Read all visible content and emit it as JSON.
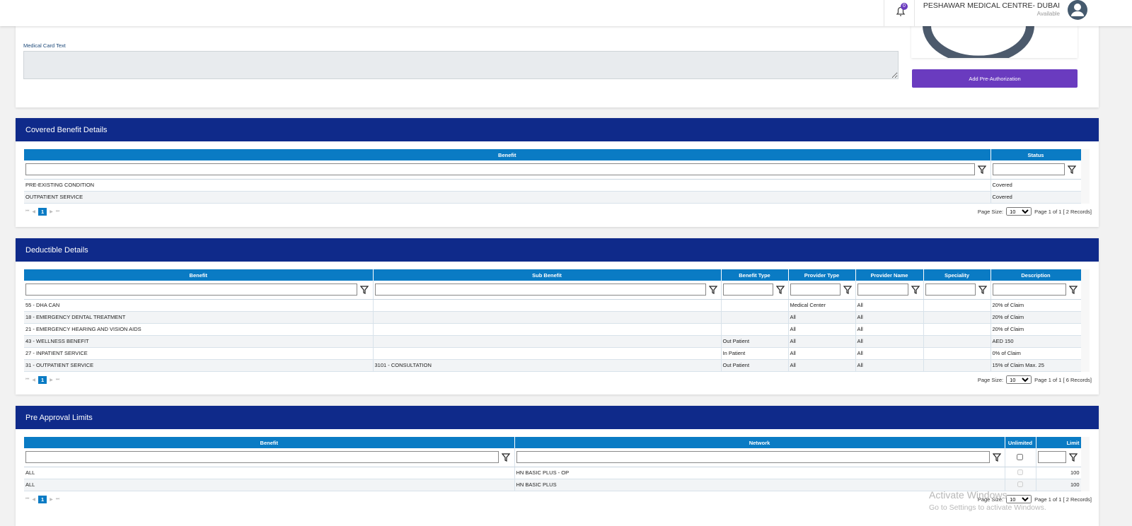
{
  "header": {
    "notifications": 0,
    "provider": "PESHAWAR MEDICAL CENTRE- DUBAI",
    "status": "Available"
  },
  "card": {
    "label": "Medical Card Text",
    "button": "Add Pre-Authorization"
  },
  "sections": [
    {
      "title": "Covered Benefit Details",
      "columns": [
        "Benefit",
        "Status"
      ],
      "rows": [
        [
          "PRE-EXISTING CONDITION",
          "Covered"
        ],
        [
          "OUTPATIENT SERVICE",
          "Covered"
        ]
      ],
      "pager": {
        "page": 1,
        "size_label": "Page Size:",
        "size": 10,
        "info": "Page 1 of 1 [ 2 Records]"
      }
    },
    {
      "title": "Deductible Details",
      "columns": [
        "Benefit",
        "Sub Benefit",
        "Benefit Type",
        "Provider Type",
        "Provider Name",
        "Speciality",
        "Description"
      ],
      "rows": [
        [
          "55 - DHA CAN",
          null,
          null,
          "Medical Center",
          "All",
          null,
          "20% of Claim"
        ],
        [
          "18 - EMERGENCY DENTAL TREATMENT",
          null,
          null,
          "All",
          "All",
          null,
          "20% of Claim"
        ],
        [
          "21 - EMERGENCY HEARING AND VISION AIDS",
          null,
          null,
          "All",
          "All",
          null,
          "20% of Claim"
        ],
        [
          "43 - WELLNESS BENEFIT",
          null,
          "Out Patient",
          "All",
          "All",
          null,
          "AED 150"
        ],
        [
          "27 - INPATIENT SERVICE",
          null,
          "In Patient",
          "All",
          "All",
          null,
          "0% of Claim"
        ],
        [
          "31 - OUTPATIENT SERVICE",
          "3101 - CONSULTATION",
          "Out Patient",
          "All",
          "All",
          null,
          "15% of Claim Max. 25"
        ]
      ],
      "pager": {
        "page": 1,
        "size_label": "Page Size:",
        "size": 10,
        "info": "Page 1 of 1 [ 6 Records]"
      }
    },
    {
      "title": "Pre Approval Limits",
      "columns": [
        "Benefit",
        "Network",
        "Unlimited",
        "Limit"
      ],
      "rows": [
        [
          "ALL",
          "HN BASIC PLUS - OP",
          false,
          100
        ],
        [
          "ALL",
          "HN BASIC PLUS",
          false,
          100
        ]
      ],
      "pager": {
        "page": 1,
        "size_label": "Page Size:",
        "size": 10,
        "info": "Page 1 of 1 [ 2 Records]"
      }
    }
  ],
  "watermark": {
    "title": "Activate Windows",
    "subtitle": "Go to Settings to activate Windows."
  }
}
